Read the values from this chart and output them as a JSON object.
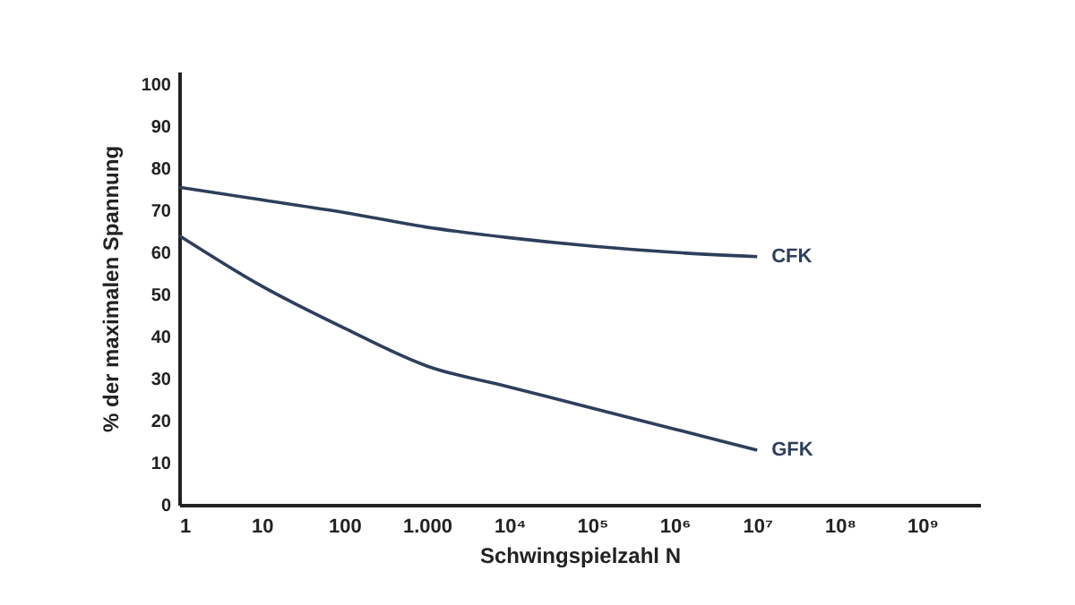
{
  "chart_data": {
    "type": "line",
    "xlabel": "Schwingspielzahl N",
    "ylabel": "% der maximalen Spannung",
    "log": "x",
    "x": [
      1,
      10,
      100,
      1000,
      10000,
      100000,
      1000000,
      10000000
    ],
    "series": [
      {
        "name": "CFK",
        "color": "#2e3f5c",
        "values": [
          75.5,
          72.5,
          69.5,
          66,
          63.5,
          61.5,
          60,
          59
        ]
      },
      {
        "name": "GFK",
        "color": "#2e3f5c",
        "values": [
          64,
          52,
          42,
          33,
          28,
          23,
          18,
          13
        ]
      }
    ],
    "xlim": [
      1,
      5000000000
    ],
    "ylim": [
      0,
      103
    ],
    "xticks": [
      1,
      10,
      100,
      {
        "value": 1000,
        "label": "1.000"
      },
      {
        "value": 10000,
        "label": "10⁴"
      },
      {
        "value": 100000,
        "label": "10⁵"
      },
      {
        "value": 1000000,
        "label": "10⁶"
      },
      {
        "value": 10000000,
        "label": "10⁷"
      },
      {
        "value": 100000000,
        "label": "10⁸"
      },
      {
        "value": 1000000000,
        "label": "10⁹"
      }
    ],
    "yticks": [
      0,
      10,
      20,
      30,
      40,
      50,
      60,
      70,
      80,
      90,
      100
    ],
    "grid": false,
    "legend": false,
    "marker": "none",
    "line_style": "solid"
  }
}
